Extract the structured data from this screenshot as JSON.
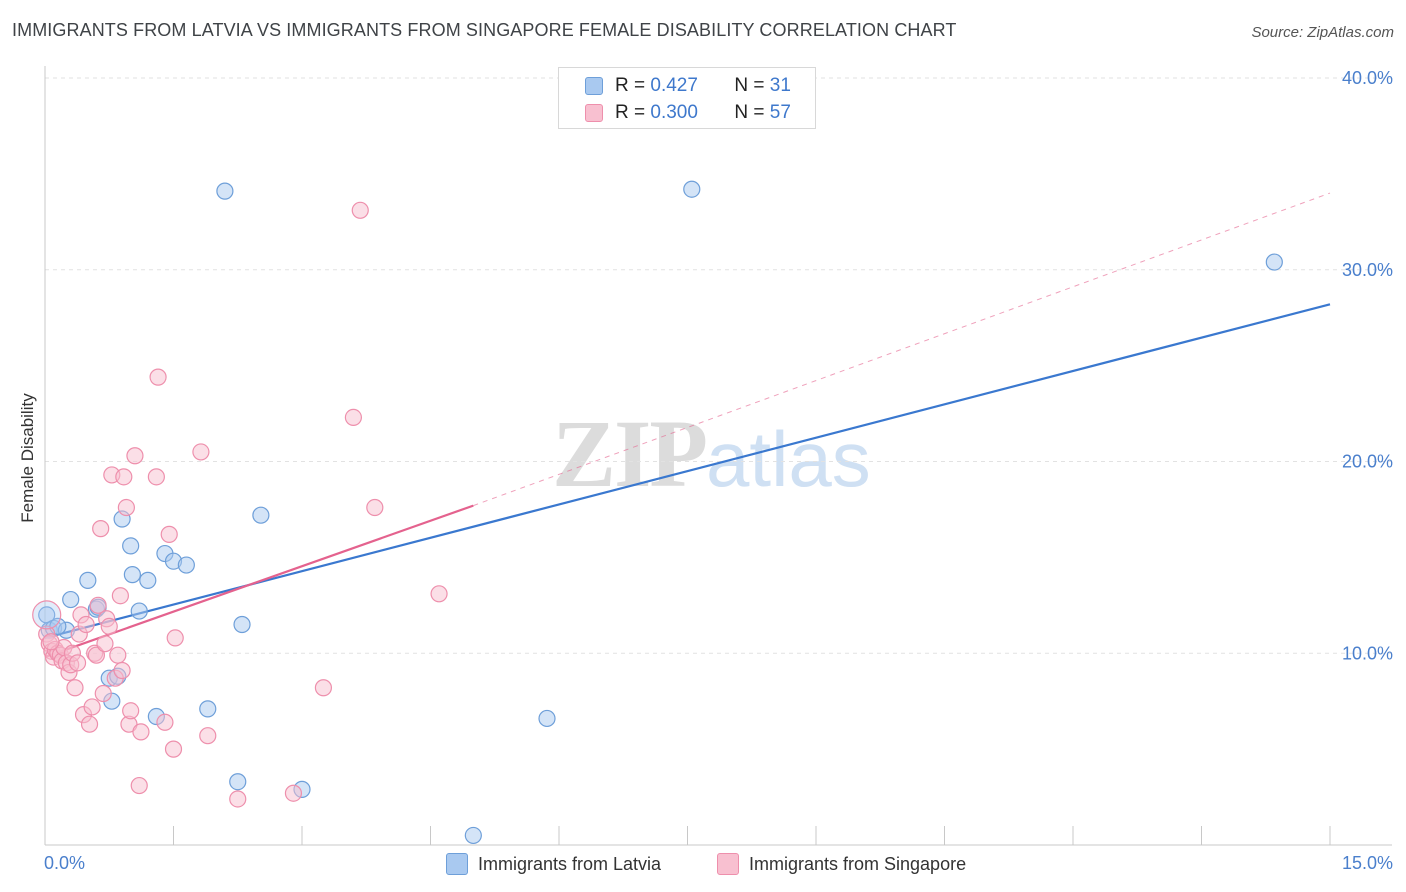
{
  "title": "IMMIGRANTS FROM LATVIA VS IMMIGRANTS FROM SINGAPORE FEMALE DISABILITY CORRELATION CHART",
  "source": "Source: ZipAtlas.com",
  "watermark": {
    "zip": "ZIP",
    "atlas": "atlas"
  },
  "legend_top": [
    {
      "r_label": "R =",
      "r_value": "0.427",
      "n_label": "N =",
      "n_value": "31"
    },
    {
      "r_label": "R =",
      "r_value": "0.300",
      "n_label": "N =",
      "n_value": "57"
    }
  ],
  "legend_bottom": [
    "Immigrants from Latvia",
    "Immigrants from Singapore"
  ],
  "colors": {
    "latvia_fill": "#a9c9f0",
    "latvia_stroke": "#6e9fd9",
    "latvia_line": "#3a78cf",
    "singapore_fill": "#f8c0d0",
    "singapore_stroke": "#ee8fac",
    "singapore_line": "#e4628e",
    "grid": "#e2e2e2",
    "tick_text": "#4a7fcc"
  },
  "chart_data": {
    "type": "scatter",
    "title": "IMMIGRANTS FROM LATVIA VS IMMIGRANTS FROM SINGAPORE FEMALE DISABILITY CORRELATION CHART",
    "xlabel": "",
    "ylabel": "Female Disability",
    "xlim": [
      0,
      15
    ],
    "ylim": [
      0,
      40
    ],
    "x_tick_labels": [
      {
        "value": 0,
        "label": "0.0%"
      },
      {
        "value": 15,
        "label": "15.0%"
      }
    ],
    "y_tick_labels": [
      {
        "value": 10,
        "label": "10.0%"
      },
      {
        "value": 20,
        "label": "20.0%"
      },
      {
        "value": 30,
        "label": "30.0%"
      },
      {
        "value": 40,
        "label": "40.0%"
      }
    ],
    "series": [
      {
        "name": "Immigrants from Latvia",
        "r": 0.427,
        "n": 31,
        "points": [
          [
            0.02,
            12.0
          ],
          [
            0.05,
            11.2
          ],
          [
            0.1,
            11.3
          ],
          [
            0.25,
            11.2
          ],
          [
            0.3,
            12.8
          ],
          [
            0.5,
            13.8
          ],
          [
            0.6,
            12.3
          ],
          [
            0.62,
            12.4
          ],
          [
            0.75,
            8.7
          ],
          [
            0.78,
            7.5
          ],
          [
            0.85,
            8.8
          ],
          [
            0.9,
            17.0
          ],
          [
            1.0,
            15.6
          ],
          [
            1.02,
            14.1
          ],
          [
            1.1,
            12.2
          ],
          [
            1.2,
            13.8
          ],
          [
            1.3,
            6.7
          ],
          [
            1.4,
            15.2
          ],
          [
            1.5,
            14.8
          ],
          [
            1.65,
            14.6
          ],
          [
            1.9,
            7.1
          ],
          [
            2.1,
            34.1
          ],
          [
            2.25,
            3.3
          ],
          [
            2.3,
            11.5
          ],
          [
            2.52,
            17.2
          ],
          [
            3.0,
            2.9
          ],
          [
            5.0,
            0.5
          ],
          [
            5.86,
            6.6
          ],
          [
            7.55,
            34.2
          ],
          [
            14.35,
            30.4
          ],
          [
            0.15,
            11.4
          ]
        ]
      },
      {
        "name": "Immigrants from Singapore",
        "r": 0.3,
        "n": 57,
        "points": [
          [
            0.02,
            11.0
          ],
          [
            0.05,
            10.5
          ],
          [
            0.08,
            10.1
          ],
          [
            0.1,
            9.8
          ],
          [
            0.12,
            10.2
          ],
          [
            0.15,
            10.0
          ],
          [
            0.18,
            9.9
          ],
          [
            0.2,
            9.6
          ],
          [
            0.22,
            10.3
          ],
          [
            0.25,
            9.5
          ],
          [
            0.28,
            9.0
          ],
          [
            0.3,
            9.4
          ],
          [
            0.32,
            10.0
          ],
          [
            0.35,
            8.2
          ],
          [
            0.38,
            9.5
          ],
          [
            0.4,
            11.0
          ],
          [
            0.42,
            12.0
          ],
          [
            0.45,
            6.8
          ],
          [
            0.48,
            11.5
          ],
          [
            0.52,
            6.3
          ],
          [
            0.55,
            7.2
          ],
          [
            0.58,
            10.0
          ],
          [
            0.6,
            9.9
          ],
          [
            0.62,
            12.5
          ],
          [
            0.65,
            16.5
          ],
          [
            0.68,
            7.9
          ],
          [
            0.7,
            10.5
          ],
          [
            0.72,
            11.8
          ],
          [
            0.75,
            11.4
          ],
          [
            0.78,
            19.3
          ],
          [
            0.82,
            8.7
          ],
          [
            0.85,
            9.9
          ],
          [
            0.88,
            13.0
          ],
          [
            0.9,
            9.1
          ],
          [
            0.92,
            19.2
          ],
          [
            0.95,
            17.6
          ],
          [
            0.98,
            6.3
          ],
          [
            1.0,
            7.0
          ],
          [
            1.05,
            20.3
          ],
          [
            1.1,
            3.1
          ],
          [
            1.12,
            5.9
          ],
          [
            1.3,
            19.2
          ],
          [
            1.32,
            24.4
          ],
          [
            1.4,
            6.4
          ],
          [
            1.45,
            16.2
          ],
          [
            1.5,
            5.0
          ],
          [
            1.52,
            10.8
          ],
          [
            1.82,
            20.5
          ],
          [
            1.9,
            5.7
          ],
          [
            2.25,
            2.4
          ],
          [
            2.9,
            2.7
          ],
          [
            3.25,
            8.2
          ],
          [
            3.6,
            22.3
          ],
          [
            3.68,
            33.1
          ],
          [
            3.85,
            17.6
          ],
          [
            4.6,
            13.1
          ],
          [
            0.07,
            10.6
          ]
        ]
      }
    ],
    "trendlines": [
      {
        "series": "Immigrants from Latvia",
        "style": "solid",
        "x": [
          0,
          15
        ],
        "y": [
          10.8,
          28.2
        ]
      },
      {
        "series": "Immigrants from Singapore",
        "style": "solid",
        "x": [
          0,
          5
        ],
        "y": [
          9.8,
          17.7
        ]
      },
      {
        "series": "Immigrants from Singapore",
        "style": "dashed",
        "x": [
          5,
          15
        ],
        "y": [
          17.7,
          34.0
        ]
      }
    ]
  }
}
